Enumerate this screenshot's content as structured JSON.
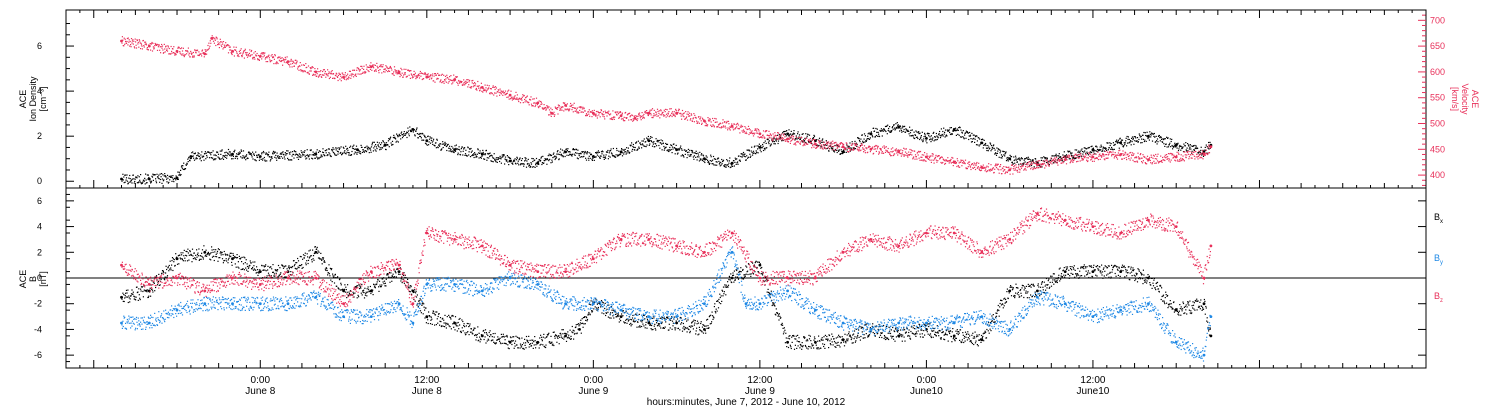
{
  "colors": {
    "black": "#000000",
    "pink": "#e8305a",
    "blue": "#1e88e5"
  },
  "chart_data": [
    {
      "type": "scatter",
      "panel": "top",
      "ylabel_left": [
        "ACE",
        "Ion Density",
        "[cm⁻³]"
      ],
      "ylabel_right": [
        "ACE",
        "Velocity",
        "[km/s]"
      ],
      "ylim_left": [
        -0.3,
        7.6
      ],
      "ylim_right": [
        375,
        720
      ],
      "yticks_left": [
        0,
        2,
        4,
        6
      ],
      "yticks_right": [
        400,
        450,
        500,
        550,
        600,
        650,
        700
      ],
      "series": [
        {
          "axis": "left",
          "color": "black",
          "points": [
            [
              -10,
              0.1
            ],
            [
              -8,
              0.1
            ],
            [
              -6,
              0.15
            ],
            [
              -5,
              1.1
            ],
            [
              -2,
              1.2
            ],
            [
              0,
              1.1
            ],
            [
              4,
              1.2
            ],
            [
              7,
              1.4
            ],
            [
              9,
              1.6
            ],
            [
              11,
              2.3
            ],
            [
              12,
              1.8
            ],
            [
              14,
              1.4
            ],
            [
              16,
              1.2
            ],
            [
              18,
              0.9
            ],
            [
              20,
              0.8
            ],
            [
              22,
              1.3
            ],
            [
              24,
              1.1
            ],
            [
              26,
              1.3
            ],
            [
              28,
              1.8
            ],
            [
              30,
              1.4
            ],
            [
              32,
              1.0
            ],
            [
              34,
              0.8
            ],
            [
              36,
              1.5
            ],
            [
              38,
              2.1
            ],
            [
              40,
              1.8
            ],
            [
              42,
              1.3
            ],
            [
              44,
              2.1
            ],
            [
              46,
              2.4
            ],
            [
              48,
              1.9
            ],
            [
              50,
              2.3
            ],
            [
              52,
              1.7
            ],
            [
              54,
              1.0
            ],
            [
              56,
              0.8
            ],
            [
              58,
              1.1
            ],
            [
              60,
              1.4
            ],
            [
              62,
              1.7
            ],
            [
              64,
              2.0
            ],
            [
              66,
              1.6
            ],
            [
              68,
              1.3
            ],
            [
              68.5,
              1.6
            ]
          ]
        },
        {
          "axis": "right",
          "color": "pink",
          "points": [
            [
              -10,
              660
            ],
            [
              -8,
              650
            ],
            [
              -6,
              640
            ],
            [
              -4,
              635
            ],
            [
              -3.5,
              665
            ],
            [
              -2,
              640
            ],
            [
              0,
              630
            ],
            [
              2,
              620
            ],
            [
              4,
              600
            ],
            [
              6,
              590
            ],
            [
              8,
              610
            ],
            [
              10,
              600
            ],
            [
              12,
              590
            ],
            [
              14,
              585
            ],
            [
              16,
              570
            ],
            [
              18,
              555
            ],
            [
              20,
              540
            ],
            [
              21,
              520
            ],
            [
              22,
              535
            ],
            [
              24,
              520
            ],
            [
              26,
              515
            ],
            [
              27,
              510
            ],
            [
              28,
              520
            ],
            [
              30,
              520
            ],
            [
              32,
              505
            ],
            [
              34,
              495
            ],
            [
              36,
              480
            ],
            [
              38,
              470
            ],
            [
              40,
              460
            ],
            [
              42,
              455
            ],
            [
              44,
              450
            ],
            [
              46,
              445
            ],
            [
              48,
              435
            ],
            [
              50,
              425
            ],
            [
              52,
              415
            ],
            [
              54,
              410
            ],
            [
              56,
              420
            ],
            [
              58,
              430
            ],
            [
              60,
              435
            ],
            [
              62,
              440
            ],
            [
              64,
              430
            ],
            [
              66,
              435
            ],
            [
              68,
              440
            ],
            [
              68.5,
              455
            ]
          ]
        }
      ]
    },
    {
      "type": "scatter",
      "panel": "bottom",
      "ylabel_left": [
        "ACE",
        "B",
        "[nT]"
      ],
      "ylim": [
        -7,
        7
      ],
      "yticks_left": [
        -6,
        -4,
        -2,
        0,
        2,
        4,
        6
      ],
      "legend_placement": "right",
      "series": [
        {
          "name": "Bx",
          "color": "black",
          "points": [
            [
              -10,
              -1.5
            ],
            [
              -8,
              -1
            ],
            [
              -6,
              1.5
            ],
            [
              -4,
              2
            ],
            [
              -2,
              1.5
            ],
            [
              0,
              0.5
            ],
            [
              2,
              0.5
            ],
            [
              4,
              2
            ],
            [
              6,
              -1
            ],
            [
              8,
              -1
            ],
            [
              10,
              0.5
            ],
            [
              11,
              -1
            ],
            [
              12,
              -3
            ],
            [
              14,
              -3.5
            ],
            [
              16,
              -4.5
            ],
            [
              18,
              -5
            ],
            [
              20,
              -5
            ],
            [
              22,
              -4.5
            ],
            [
              23,
              -4
            ],
            [
              24,
              -2
            ],
            [
              26,
              -3
            ],
            [
              28,
              -3.5
            ],
            [
              30,
              -3.5
            ],
            [
              32,
              -4
            ],
            [
              34,
              0
            ],
            [
              36,
              1
            ],
            [
              38,
              -5
            ],
            [
              40,
              -5
            ],
            [
              42,
              -4.8
            ],
            [
              44,
              -4
            ],
            [
              46,
              -4.5
            ],
            [
              48,
              -4
            ],
            [
              50,
              -4.5
            ],
            [
              52,
              -4.8
            ],
            [
              54,
              -1
            ],
            [
              56,
              -1
            ],
            [
              58,
              0.5
            ],
            [
              60,
              0.5
            ],
            [
              62,
              0.5
            ],
            [
              64,
              0
            ],
            [
              66,
              -2.5
            ],
            [
              68,
              -2
            ],
            [
              68.5,
              -4.5
            ]
          ]
        },
        {
          "name": "By",
          "color": "blue",
          "points": [
            [
              -10,
              -3.5
            ],
            [
              -8,
              -3.5
            ],
            [
              -6,
              -2.5
            ],
            [
              -4,
              -2
            ],
            [
              -2,
              -2
            ],
            [
              0,
              -2
            ],
            [
              2,
              -2
            ],
            [
              4,
              -1.5
            ],
            [
              6,
              -3
            ],
            [
              8,
              -3
            ],
            [
              10,
              -2
            ],
            [
              11,
              -3.5
            ],
            [
              12,
              -0.5
            ],
            [
              14,
              -0.5
            ],
            [
              16,
              -1
            ],
            [
              18,
              0
            ],
            [
              20,
              -0.5
            ],
            [
              22,
              -2
            ],
            [
              24,
              -2
            ],
            [
              26,
              -2.5
            ],
            [
              28,
              -3
            ],
            [
              30,
              -3
            ],
            [
              32,
              -2
            ],
            [
              34,
              2
            ],
            [
              35,
              -2
            ],
            [
              36,
              -2
            ],
            [
              38,
              -1
            ],
            [
              40,
              -2.5
            ],
            [
              42,
              -3.5
            ],
            [
              44,
              -4
            ],
            [
              46,
              -3.5
            ],
            [
              48,
              -3.5
            ],
            [
              50,
              -3.5
            ],
            [
              52,
              -3
            ],
            [
              54,
              -4
            ],
            [
              56,
              -1.5
            ],
            [
              58,
              -2
            ],
            [
              60,
              -3
            ],
            [
              62,
              -2.5
            ],
            [
              64,
              -2
            ],
            [
              66,
              -5
            ],
            [
              68,
              -6
            ],
            [
              68.5,
              -3
            ]
          ]
        },
        {
          "name": "Bz",
          "color": "pink",
          "points": [
            [
              -10,
              1
            ],
            [
              -8,
              -0.5
            ],
            [
              -6,
              0
            ],
            [
              -4,
              -1
            ],
            [
              -2,
              0
            ],
            [
              0,
              -0.5
            ],
            [
              2,
              0
            ],
            [
              4,
              0
            ],
            [
              6,
              -2
            ],
            [
              8,
              0.5
            ],
            [
              10,
              1
            ],
            [
              11,
              -2
            ],
            [
              12,
              3.5
            ],
            [
              14,
              3
            ],
            [
              16,
              2.5
            ],
            [
              18,
              1
            ],
            [
              20,
              0.5
            ],
            [
              22,
              0.5
            ],
            [
              24,
              1.5
            ],
            [
              26,
              3
            ],
            [
              28,
              3
            ],
            [
              30,
              2.5
            ],
            [
              32,
              2
            ],
            [
              34,
              3.5
            ],
            [
              36,
              0
            ],
            [
              38,
              0
            ],
            [
              40,
              0
            ],
            [
              42,
              2
            ],
            [
              44,
              3
            ],
            [
              46,
              2.5
            ],
            [
              48,
              3.5
            ],
            [
              50,
              3.5
            ],
            [
              52,
              2
            ],
            [
              54,
              3
            ],
            [
              56,
              5
            ],
            [
              58,
              4.5
            ],
            [
              60,
              4
            ],
            [
              62,
              3.5
            ],
            [
              64,
              4.5
            ],
            [
              66,
              4
            ],
            [
              68,
              0
            ],
            [
              68.5,
              2.5
            ]
          ]
        }
      ]
    }
  ],
  "x_axis": {
    "xlim": [
      -14,
      84
    ],
    "unit": "hours from 0:00 June 8, 2012",
    "ticks": [
      {
        "x": 0,
        "time": "0:00",
        "date": "June 8"
      },
      {
        "x": 12,
        "time": "12:00",
        "date": "June 8"
      },
      {
        "x": 24,
        "time": "0:00",
        "date": "June 9"
      },
      {
        "x": 36,
        "time": "12:00",
        "date": "June 9"
      },
      {
        "x": 48,
        "time": "0:00",
        "date": "June10"
      },
      {
        "x": 60,
        "time": "12:00",
        "date": "June10"
      }
    ],
    "minor_tick_hours": 1,
    "xlabel": "hours:minutes, June  7, 2012 - June 10, 2012"
  },
  "legend": [
    {
      "label": "B",
      "sub": "x",
      "color": "black"
    },
    {
      "label": "B",
      "sub": "y",
      "color": "blue"
    },
    {
      "label": "B",
      "sub": "z",
      "color": "pink"
    }
  ]
}
